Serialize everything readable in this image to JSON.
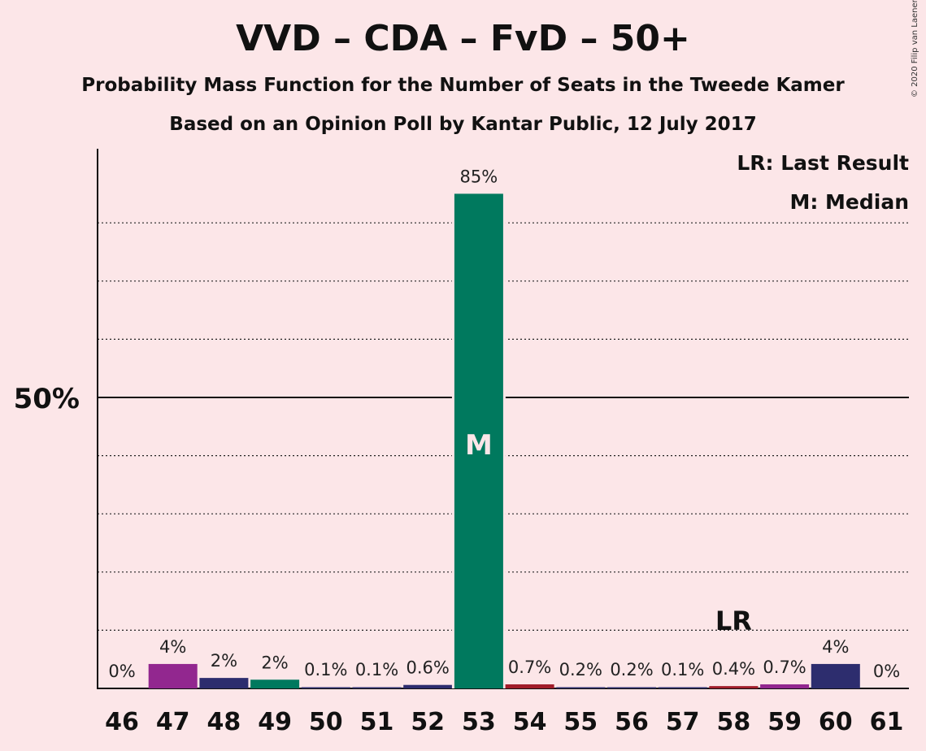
{
  "header": {
    "title": "VVD – CDA – FvD – 50+",
    "subtitle1": "Probability Mass Function for the Number of Seats in the Tweede Kamer",
    "subtitle2": "Based on an Opinion Poll by Kantar Public, 12 July 2017",
    "copyright": "© 2020 Filip van Laenen"
  },
  "chart_data": {
    "type": "bar",
    "categories": [
      "46",
      "47",
      "48",
      "49",
      "50",
      "51",
      "52",
      "53",
      "54",
      "55",
      "56",
      "57",
      "58",
      "59",
      "60",
      "61"
    ],
    "values": [
      0,
      4.2,
      1.8,
      1.5,
      0.1,
      0.1,
      0.6,
      85,
      0.7,
      0.2,
      0.2,
      0.1,
      0.4,
      0.7,
      4.2,
      0
    ],
    "value_labels": [
      "0%",
      "4%",
      "2%",
      "2%",
      "0.1%",
      "0.1%",
      "0.6%",
      "85%",
      "0.7%",
      "0.2%",
      "0.2%",
      "0.1%",
      "0.4%",
      "0.7%",
      "4%",
      "0%"
    ],
    "bar_colors": [
      "#7a1f7a",
      "#92278f",
      "#2d2d6e",
      "#00795e",
      "#2d2d6e",
      "#2d2d6e",
      "#2d2d6e",
      "#00795e",
      "#a11d2a",
      "#2d2d6e",
      "#2d2d6e",
      "#2d2d6e",
      "#a11d2a",
      "#92278f",
      "#2d2d6e",
      "#2d2d6e"
    ],
    "ylim": [
      0,
      93
    ],
    "ytick_label": "50%",
    "ytick_value": 50,
    "dotted_gridlines": [
      10,
      20,
      30,
      40,
      60,
      70,
      80
    ],
    "median": {
      "category": "53",
      "label": "M"
    },
    "last_result": {
      "category": "58",
      "label": "LR"
    },
    "legend": {
      "position": "top-right",
      "entries": [
        "LR: Last Result",
        "M: Median"
      ]
    },
    "colors": {
      "background": "#fce6e8",
      "median_text": "#fce6e8"
    }
  }
}
